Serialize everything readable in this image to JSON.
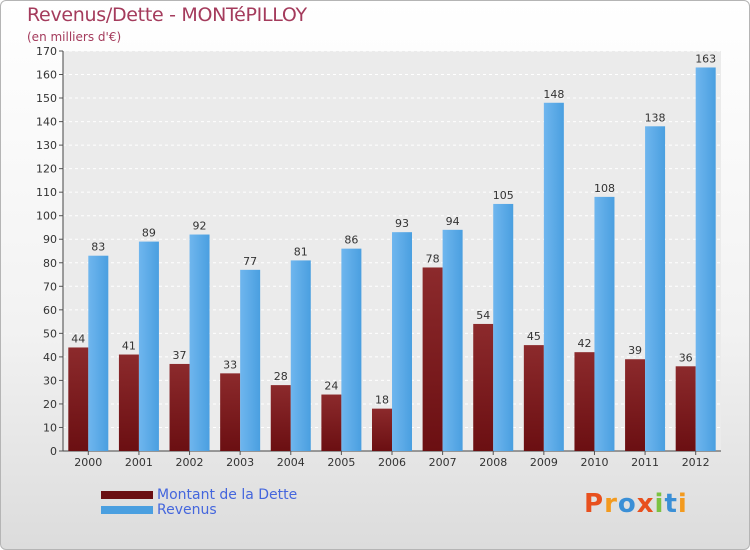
{
  "header": {
    "title": "Revenus/Dette - MONTéPILLOY",
    "subtitle": "(en milliers d'€)"
  },
  "colors": {
    "dette": "#6b0f12",
    "revenus": "#4a9fe0"
  },
  "legend": {
    "dette_label": "Montant de la Dette",
    "revenus_label": "Revenus"
  },
  "logo": {
    "text": "Proxiti"
  },
  "chart_data": {
    "type": "bar",
    "title": "Revenus/Dette - MONTéPILLOY",
    "ylabel": "(en milliers d'€)",
    "categories": [
      "2000",
      "2001",
      "2002",
      "2003",
      "2004",
      "2005",
      "2006",
      "2007",
      "2008",
      "2009",
      "2010",
      "2011",
      "2012"
    ],
    "series": [
      {
        "name": "Montant de la Dette",
        "values": [
          44,
          41,
          37,
          33,
          28,
          24,
          18,
          78,
          54,
          45,
          42,
          39,
          36
        ]
      },
      {
        "name": "Revenus",
        "values": [
          83,
          89,
          92,
          77,
          81,
          86,
          93,
          94,
          105,
          148,
          108,
          138,
          163
        ]
      }
    ],
    "ylim": [
      0,
      170
    ],
    "yticks": [
      0,
      10,
      20,
      30,
      40,
      50,
      60,
      70,
      80,
      90,
      100,
      110,
      120,
      130,
      140,
      150,
      160,
      170
    ],
    "grid": true,
    "legend_position": "bottom-left"
  }
}
